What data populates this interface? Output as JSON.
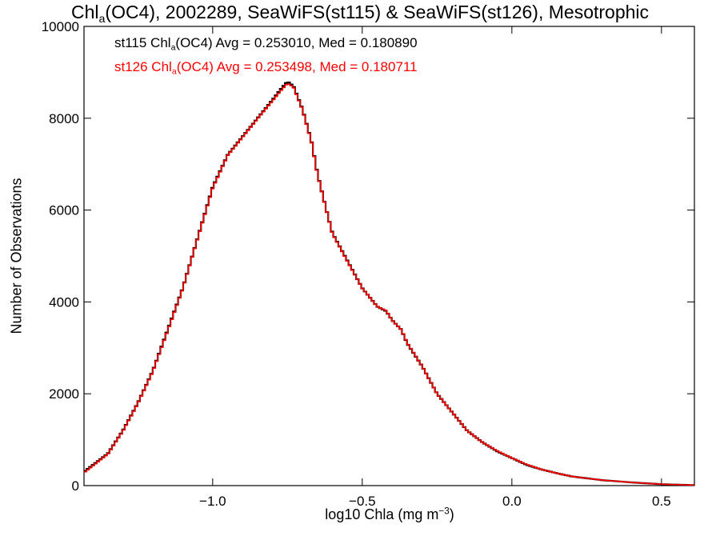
{
  "title": {
    "pre": "Chl",
    "sub": "a",
    "post": "(OC4), 2002289, SeaWiFS(st115) & SeaWiFS(st126), Mesotrophic"
  },
  "legend": [
    {
      "pre": "st115 Chl",
      "sub": "a",
      "post": "(OC4) Avg = 0.253010, Med = 0.180890",
      "color": "#000000"
    },
    {
      "pre": "st126 Chl",
      "sub": "a",
      "post": "(OC4) Avg = 0.253498, Med = 0.180711",
      "color": "#ff0000"
    }
  ],
  "axes": {
    "ylabel": "Number of Observations",
    "xlabel_pre": "log10 Chla (mg m",
    "xlabel_sup": "−3",
    "xlabel_post": ")"
  },
  "chart_data": {
    "type": "line",
    "step": true,
    "title": "Chla(OC4), 2002289, SeaWiFS(st115) & SeaWiFS(st126), Mesotrophic",
    "xlabel": "log10 Chla (mg m−3)",
    "ylabel": "Number of Observations",
    "xlim": [
      -1.43,
      0.61
    ],
    "ylim": [
      0,
      10000
    ],
    "x_ticks": [
      -1.0,
      -0.5,
      0.0,
      0.5
    ],
    "x_tick_labels": [
      "−1.0",
      "−0.5",
      "0.0",
      "0.5"
    ],
    "y_ticks": [
      0,
      2000,
      4000,
      6000,
      8000,
      10000
    ],
    "y_tick_labels": [
      "0",
      "2000",
      "4000",
      "6000",
      "8000",
      "10000"
    ],
    "x": [
      -1.43,
      -1.35,
      -1.3,
      -1.25,
      -1.2,
      -1.15,
      -1.1,
      -1.05,
      -1.0,
      -0.95,
      -0.9,
      -0.85,
      -0.8,
      -0.77,
      -0.75,
      -0.73,
      -0.7,
      -0.67,
      -0.65,
      -0.62,
      -0.6,
      -0.55,
      -0.5,
      -0.45,
      -0.42,
      -0.4,
      -0.37,
      -0.35,
      -0.3,
      -0.25,
      -0.2,
      -0.15,
      -0.1,
      -0.05,
      0.0,
      0.05,
      0.1,
      0.15,
      0.2,
      0.3,
      0.4,
      0.5,
      0.61
    ],
    "series": [
      {
        "name": "st115",
        "color": "#000000",
        "values": [
          300,
          700,
          1200,
          1800,
          2500,
          3400,
          4300,
          5400,
          6500,
          7200,
          7600,
          8000,
          8400,
          8650,
          8800,
          8700,
          8200,
          7500,
          6800,
          6000,
          5500,
          4900,
          4300,
          3900,
          3800,
          3600,
          3400,
          3100,
          2600,
          2000,
          1600,
          1200,
          950,
          750,
          600,
          450,
          350,
          270,
          200,
          120,
          70,
          30,
          10
        ]
      },
      {
        "name": "st126",
        "color": "#ff0000",
        "values": [
          280,
          690,
          1190,
          1790,
          2490,
          3380,
          4290,
          5390,
          6480,
          7190,
          7590,
          7990,
          8380,
          8620,
          8760,
          8680,
          8190,
          7490,
          6790,
          6000,
          5490,
          4890,
          4300,
          3900,
          3810,
          3600,
          3400,
          3110,
          2600,
          2000,
          1600,
          1200,
          950,
          760,
          600,
          460,
          350,
          270,
          200,
          120,
          70,
          30,
          10
        ]
      }
    ],
    "grid": false
  }
}
